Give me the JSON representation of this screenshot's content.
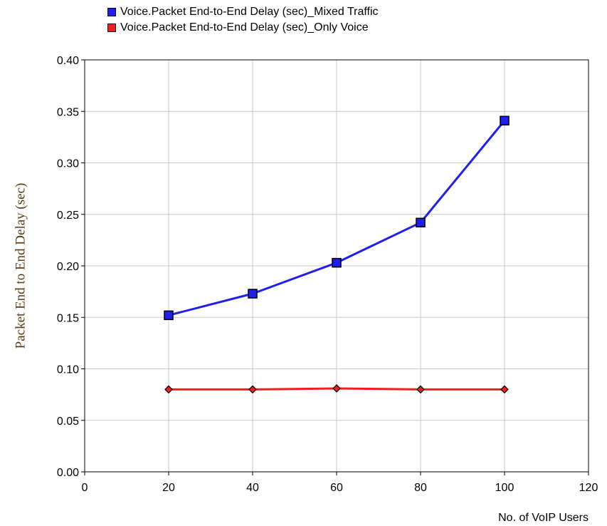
{
  "chart_data": {
    "type": "line",
    "title": "",
    "xlabel": "No. of VoIP Users",
    "ylabel": "Packet End to End Delay (sec)",
    "xlim": [
      0,
      120
    ],
    "ylim": [
      0,
      0.4
    ],
    "xticks": [
      0,
      20,
      40,
      60,
      80,
      100,
      120
    ],
    "xtick_labels": [
      "0",
      "20",
      "40",
      "60",
      "80",
      "100",
      "120"
    ],
    "yticks": [
      0,
      0.05,
      0.1,
      0.15,
      0.2,
      0.25,
      0.3,
      0.35,
      0.4
    ],
    "ytick_labels": [
      "0.00",
      "0.05",
      "0.10",
      "0.15",
      "0.20",
      "0.25",
      "0.30",
      "0.35",
      "0.40"
    ],
    "grid": true,
    "legend_position": "top",
    "x": [
      20,
      40,
      60,
      80,
      100
    ],
    "series": [
      {
        "name": "Voice.Packet End-to-End Delay (sec)_Mixed Traffic",
        "color": "#1f1fef",
        "marker": "square",
        "values": [
          0.152,
          0.173,
          0.203,
          0.242,
          0.341
        ]
      },
      {
        "name": "Voice.Packet End-to-End Delay (sec)_Only Voice",
        "color": "#ef1f1f",
        "marker": "diamond",
        "values": [
          0.08,
          0.08,
          0.081,
          0.08,
          0.08
        ]
      }
    ]
  }
}
